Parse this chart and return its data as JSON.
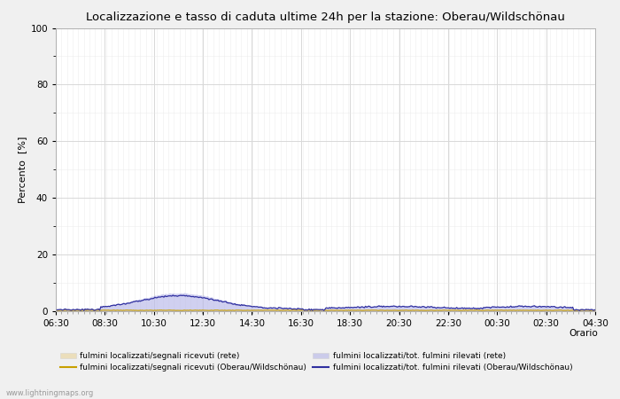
{
  "title": "Localizzazione e tasso di caduta ultime 24h per la stazione: Oberau/Wildschönau",
  "ylabel": "Percento  [%]",
  "xlabel": "Orario",
  "xlim_start": 0,
  "xlim_end": 48,
  "ylim": [
    0,
    100
  ],
  "yticks": [
    0,
    20,
    40,
    60,
    80,
    100
  ],
  "yticks_minor": [
    10,
    30,
    50,
    70,
    90
  ],
  "xtick_labels": [
    "06:30",
    "08:30",
    "10:30",
    "12:30",
    "14:30",
    "16:30",
    "18:30",
    "20:30",
    "22:30",
    "00:30",
    "02:30",
    "04:30"
  ],
  "background_color": "#f0f0f0",
  "plot_bg_color": "#ffffff",
  "grid_major_color": "#d8d8d8",
  "grid_minor_color": "#e8e8e8",
  "fill_rete_color": "#e8d090",
  "fill_rete_alpha": 0.55,
  "fill_station_color": "#b8b8e8",
  "fill_station_alpha": 0.65,
  "line_rete_color": "#c8a000",
  "line_station_color": "#3030a0",
  "watermark": "www.lightningmaps.org",
  "legend_labels": [
    "fulmini localizzati/segnali ricevuti (rete)",
    "fulmini localizzati/segnali ricevuti (Oberau/Wildschönau)",
    "fulmini localizzati/tot. fulmini rilevati (rete)",
    "fulmini localizzati/tot. fulmini rilevati (Oberau/Wildschönau)"
  ]
}
